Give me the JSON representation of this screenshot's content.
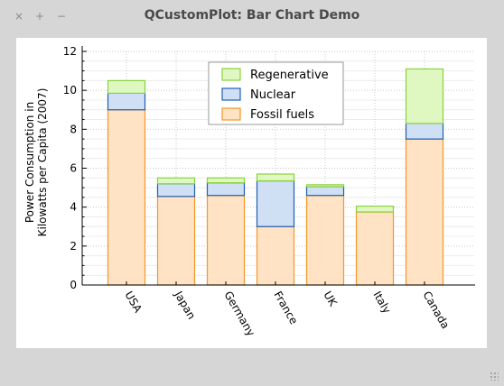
{
  "window": {
    "title": "QCustomPlot: Bar Chart Demo",
    "buttons": {
      "close": "×",
      "maximize": "+",
      "minimize": "−"
    }
  },
  "chart_data": {
    "type": "bar",
    "stacked": true,
    "categories": [
      "USA",
      "Japan",
      "Germany",
      "France",
      "UK",
      "Italy",
      "Canada"
    ],
    "series": [
      {
        "name": "Fossil fuels",
        "values": [
          9.0,
          4.55,
          4.6,
          3.0,
          4.6,
          3.75,
          7.5
        ],
        "fill": "#ffe3c4",
        "stroke": "#f5962a"
      },
      {
        "name": "Nuclear",
        "values": [
          0.85,
          0.65,
          0.65,
          2.35,
          0.45,
          0.0,
          0.8
        ],
        "fill": "#cfe0f5",
        "stroke": "#1f5fb4"
      },
      {
        "name": "Regenerative",
        "values": [
          0.65,
          0.3,
          0.25,
          0.35,
          0.1,
          0.3,
          2.8
        ],
        "fill": "#dff7c0",
        "stroke": "#8cd23e"
      }
    ],
    "ylabel_lines": [
      "Power Consumption in",
      "Kilowatts per Capita (2007)"
    ],
    "ylim": [
      0,
      12
    ],
    "yticks": [
      0,
      2,
      4,
      6,
      8,
      10,
      12
    ],
    "legend_order": [
      "Regenerative",
      "Nuclear",
      "Fossil fuels"
    ],
    "legend_position": "top-center",
    "grid": true
  }
}
